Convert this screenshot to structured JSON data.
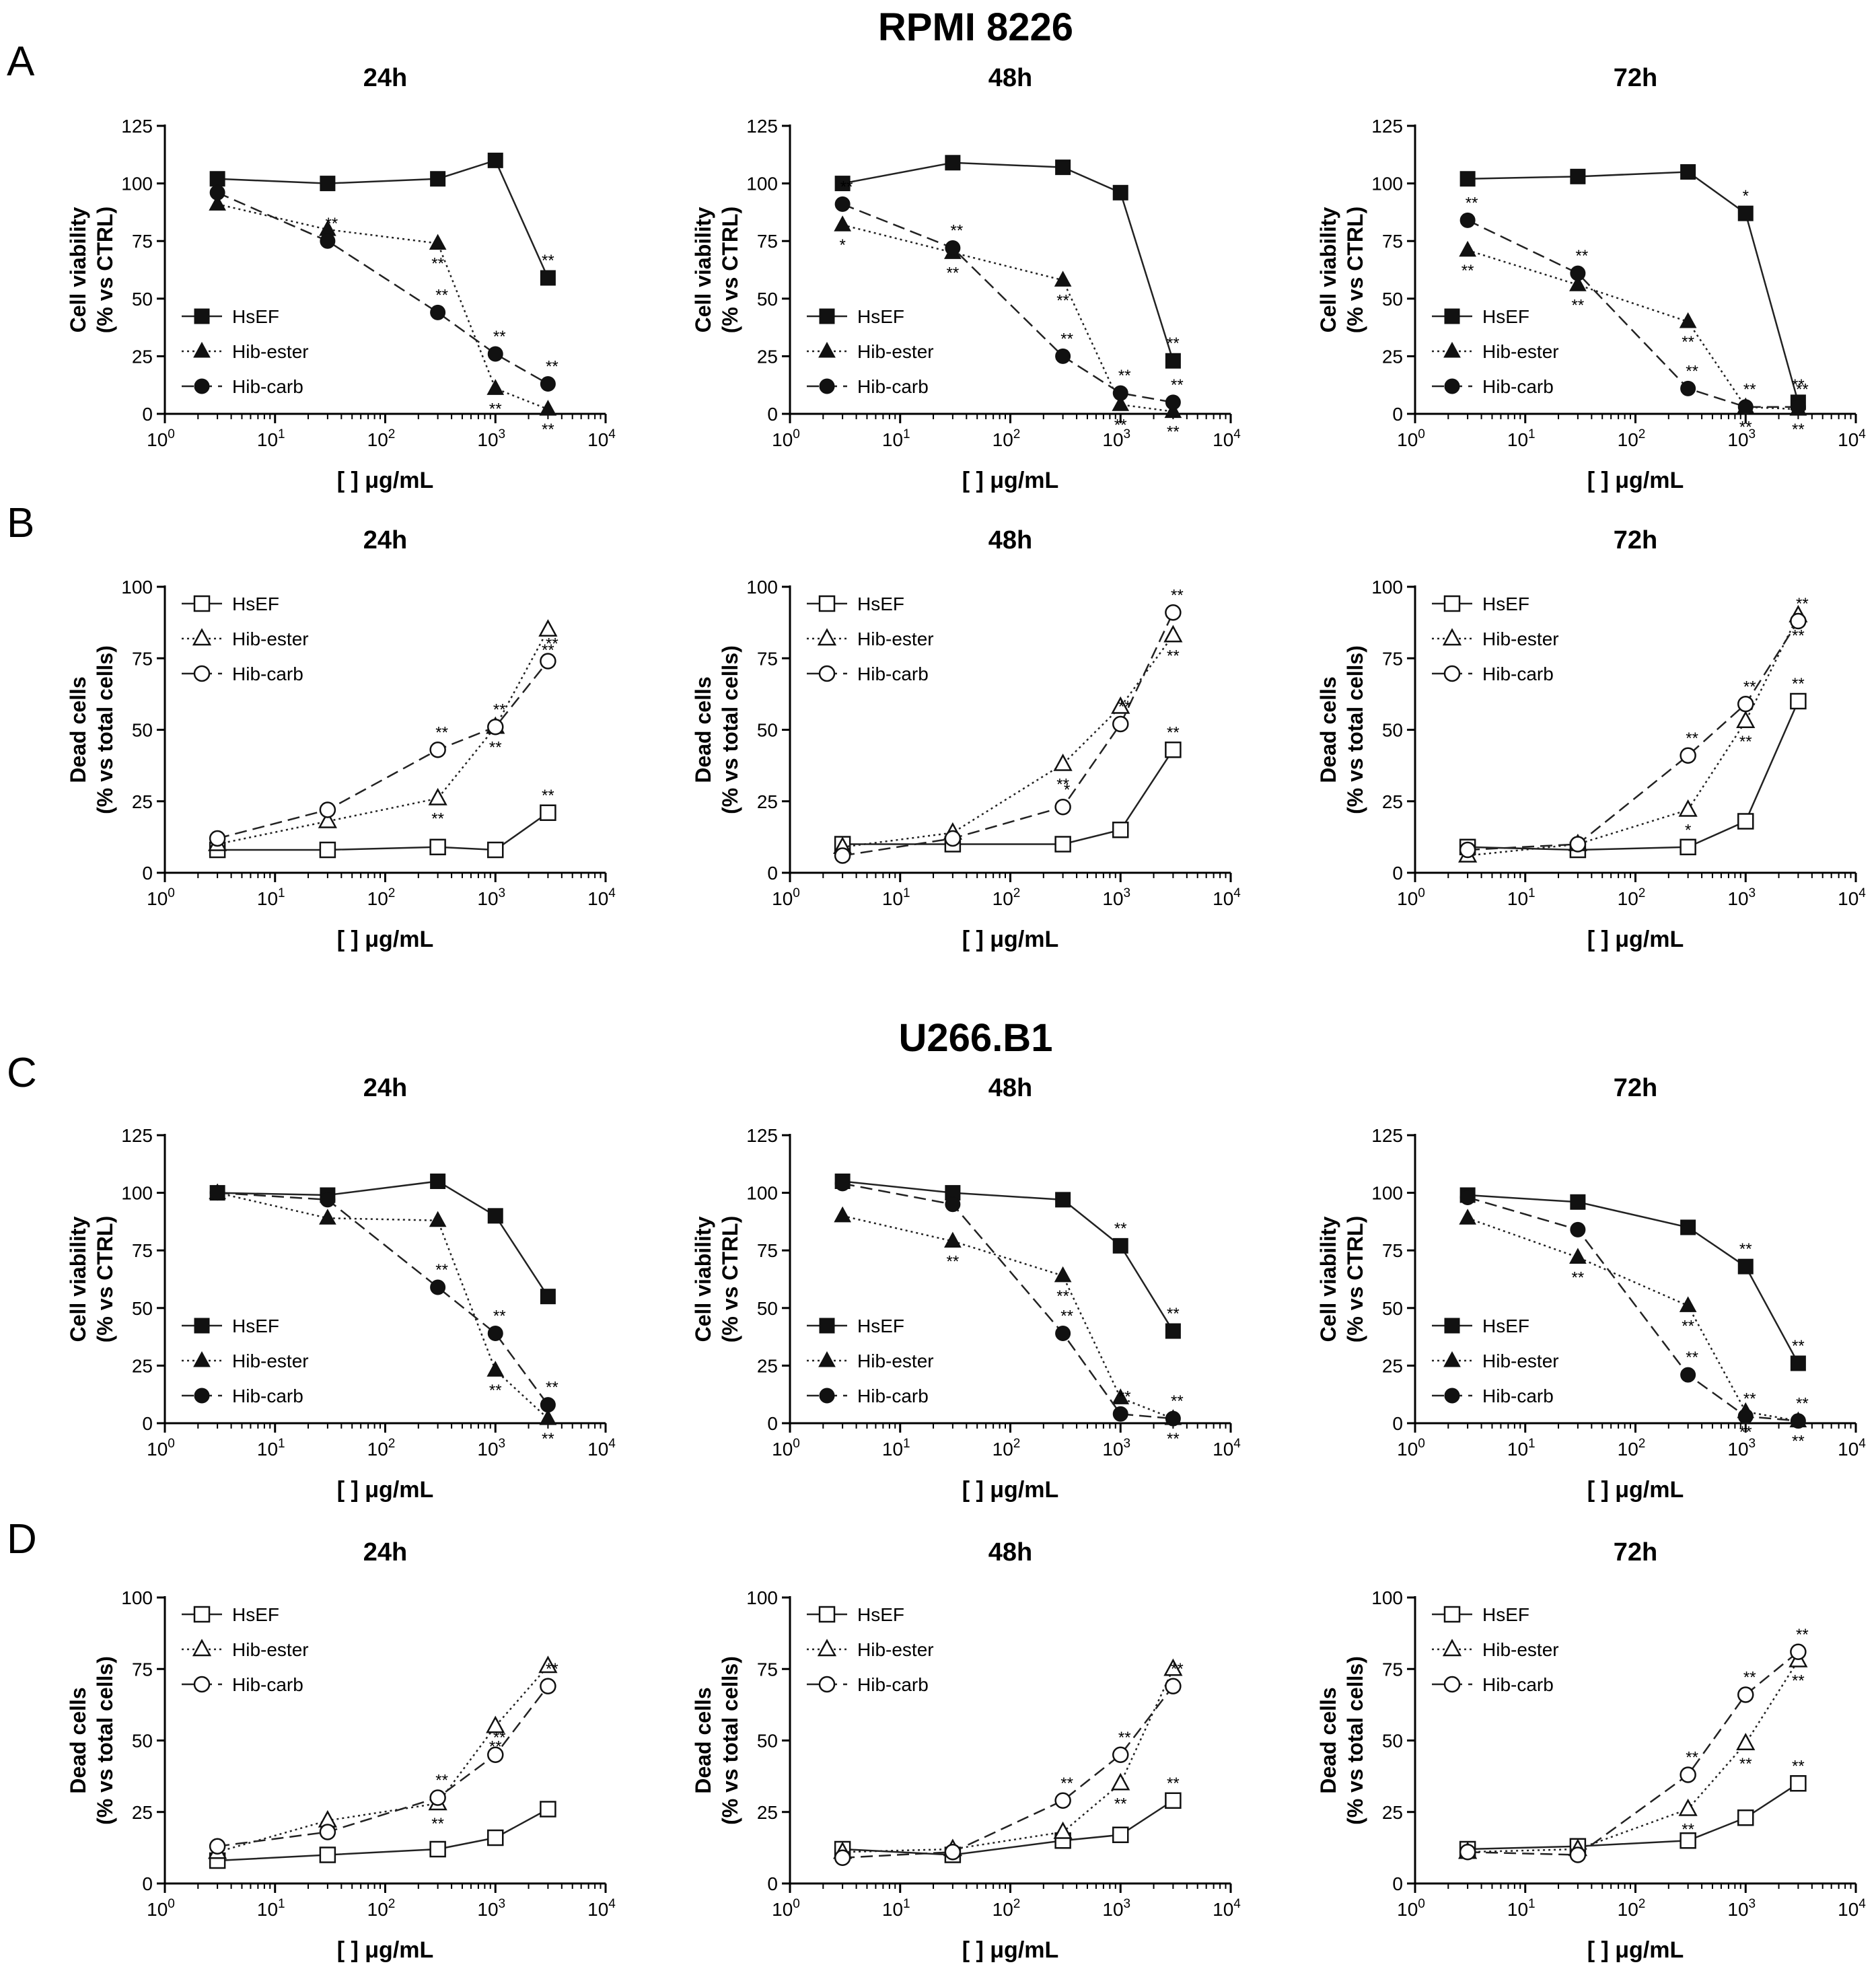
{
  "figure": {
    "group_titles": [
      "RPMI 8226",
      "U266.B1"
    ],
    "row_letters": [
      "A",
      "B",
      "C",
      "D"
    ]
  },
  "chart_data": [
    {
      "id": "A-24h",
      "row": "A",
      "time": "24h",
      "type": "line",
      "title": "24h",
      "xlabel": "[ ] μg/mL",
      "ylabel": [
        "Cell viability",
        "(% vs CTRL)"
      ],
      "ylim": [
        0,
        125
      ],
      "yticks": [
        0,
        25,
        50,
        75,
        100,
        125
      ],
      "xscale": "log",
      "xlim": [
        1,
        10000
      ],
      "markers_filled": true,
      "x": [
        3,
        30,
        300,
        1000,
        3000
      ],
      "series": [
        {
          "name": "HsEF",
          "values": [
            102,
            100,
            102,
            110,
            59
          ],
          "sig": [
            "",
            "",
            "",
            "",
            "**"
          ]
        },
        {
          "name": "Hib-ester",
          "values": [
            91,
            80,
            74,
            11,
            2
          ],
          "sig": [
            "",
            "",
            "**",
            "**",
            "**"
          ]
        },
        {
          "name": "Hib-carb",
          "values": [
            96,
            75,
            44,
            26,
            13
          ],
          "sig": [
            "",
            "**",
            "**",
            "**",
            "**"
          ]
        }
      ]
    },
    {
      "id": "A-48h",
      "row": "A",
      "time": "48h",
      "type": "line",
      "title": "48h",
      "xlabel": "[ ] μg/mL",
      "ylabel": [
        "Cell viability",
        "(% vs CTRL)"
      ],
      "ylim": [
        0,
        125
      ],
      "yticks": [
        0,
        25,
        50,
        75,
        100,
        125
      ],
      "xscale": "log",
      "xlim": [
        1,
        10000
      ],
      "markers_filled": true,
      "x": [
        3,
        30,
        300,
        1000,
        3000
      ],
      "series": [
        {
          "name": "HsEF",
          "values": [
            100,
            109,
            107,
            96,
            23
          ],
          "sig": [
            "",
            "",
            "",
            "",
            "**"
          ]
        },
        {
          "name": "Hib-ester",
          "values": [
            82,
            70,
            58,
            4,
            1
          ],
          "sig": [
            "*",
            "**",
            "**",
            "**",
            "**"
          ]
        },
        {
          "name": "Hib-carb",
          "values": [
            91,
            72,
            25,
            9,
            5
          ],
          "sig": [
            "**",
            "**",
            "**",
            "**",
            "**"
          ]
        }
      ]
    },
    {
      "id": "A-72h",
      "row": "A",
      "time": "72h",
      "type": "line",
      "title": "72h",
      "xlabel": "[ ] μg/mL",
      "ylabel": [
        "Cell viability",
        "(% vs CTRL)"
      ],
      "ylim": [
        0,
        125
      ],
      "yticks": [
        0,
        25,
        50,
        75,
        100,
        125
      ],
      "xscale": "log",
      "xlim": [
        1,
        10000
      ],
      "markers_filled": true,
      "x": [
        3,
        30,
        300,
        1000,
        3000
      ],
      "series": [
        {
          "name": "HsEF",
          "values": [
            102,
            103,
            105,
            87,
            5
          ],
          "sig": [
            "",
            "",
            "",
            "*",
            "**"
          ]
        },
        {
          "name": "Hib-ester",
          "values": [
            71,
            56,
            40,
            3,
            2
          ],
          "sig": [
            "**",
            "**",
            "**",
            "**",
            "**"
          ]
        },
        {
          "name": "Hib-carb",
          "values": [
            84,
            61,
            11,
            3,
            3
          ],
          "sig": [
            "**",
            "**",
            "**",
            "**",
            "**"
          ]
        }
      ]
    },
    {
      "id": "B-24h",
      "row": "B",
      "time": "24h",
      "type": "line",
      "title": "24h",
      "xlabel": "[ ] μg/mL",
      "ylabel": [
        "Dead cells",
        "(% vs total cells)"
      ],
      "ylim": [
        0,
        100
      ],
      "yticks": [
        0,
        25,
        50,
        75,
        100
      ],
      "xscale": "log",
      "xlim": [
        1,
        10000
      ],
      "markers_filled": false,
      "x": [
        3,
        30,
        300,
        1000,
        3000
      ],
      "series": [
        {
          "name": "HsEF",
          "values": [
            8,
            8,
            9,
            8,
            21
          ],
          "sig": [
            "",
            "",
            "",
            "",
            "**"
          ]
        },
        {
          "name": "Hib-ester",
          "values": [
            10,
            18,
            26,
            51,
            85
          ],
          "sig": [
            "",
            "",
            "**",
            "**",
            "**"
          ]
        },
        {
          "name": "Hib-carb",
          "values": [
            12,
            22,
            43,
            51,
            74
          ],
          "sig": [
            "",
            "",
            "**",
            "**",
            "**"
          ]
        }
      ]
    },
    {
      "id": "B-48h",
      "row": "B",
      "time": "48h",
      "type": "line",
      "title": "48h",
      "xlabel": "[ ] μg/mL",
      "ylabel": [
        "Dead cells",
        "(% vs total cells)"
      ],
      "ylim": [
        0,
        100
      ],
      "yticks": [
        0,
        25,
        50,
        75,
        100
      ],
      "xscale": "log",
      "xlim": [
        1,
        10000
      ],
      "markers_filled": false,
      "x": [
        3,
        30,
        300,
        1000,
        3000
      ],
      "series": [
        {
          "name": "HsEF",
          "values": [
            10,
            10,
            10,
            15,
            43
          ],
          "sig": [
            "",
            "",
            "",
            "",
            "**"
          ]
        },
        {
          "name": "Hib-ester",
          "values": [
            9,
            14,
            38,
            58,
            83
          ],
          "sig": [
            "",
            "",
            "**",
            "**",
            "**"
          ]
        },
        {
          "name": "Hib-carb",
          "values": [
            6,
            12,
            23,
            52,
            91
          ],
          "sig": [
            "",
            "",
            "*",
            "**",
            "**"
          ]
        }
      ]
    },
    {
      "id": "B-72h",
      "row": "B",
      "time": "72h",
      "type": "line",
      "title": "72h",
      "xlabel": "[ ] μg/mL",
      "ylabel": [
        "Dead cells",
        "(% vs total cells)"
      ],
      "ylim": [
        0,
        100
      ],
      "yticks": [
        0,
        25,
        50,
        75,
        100
      ],
      "xscale": "log",
      "xlim": [
        1,
        10000
      ],
      "markers_filled": false,
      "x": [
        3,
        30,
        300,
        1000,
        3000
      ],
      "series": [
        {
          "name": "HsEF",
          "values": [
            9,
            8,
            9,
            18,
            60
          ],
          "sig": [
            "",
            "",
            "",
            "",
            "**"
          ]
        },
        {
          "name": "Hib-ester",
          "values": [
            6,
            10,
            22,
            53,
            90
          ],
          "sig": [
            "",
            "",
            "*",
            "**",
            "**"
          ]
        },
        {
          "name": "Hib-carb",
          "values": [
            8,
            10,
            41,
            59,
            88
          ],
          "sig": [
            "",
            "",
            "**",
            "**",
            "**"
          ]
        }
      ]
    },
    {
      "id": "C-24h",
      "row": "C",
      "time": "24h",
      "type": "line",
      "title": "24h",
      "xlabel": "[ ] μg/mL",
      "ylabel": [
        "Cell viability",
        "(% vs CTRL)"
      ],
      "ylim": [
        0,
        125
      ],
      "yticks": [
        0,
        25,
        50,
        75,
        100,
        125
      ],
      "xscale": "log",
      "xlim": [
        1,
        10000
      ],
      "markers_filled": true,
      "x": [
        3,
        30,
        300,
        1000,
        3000
      ],
      "series": [
        {
          "name": "HsEF",
          "values": [
            100,
            99,
            105,
            90,
            55
          ],
          "sig": [
            "",
            "",
            "",
            "",
            ""
          ]
        },
        {
          "name": "Hib-ester",
          "values": [
            100,
            89,
            88,
            23,
            2
          ],
          "sig": [
            "",
            "",
            "",
            "**",
            "**"
          ]
        },
        {
          "name": "Hib-carb",
          "values": [
            100,
            97,
            59,
            39,
            8
          ],
          "sig": [
            "",
            "",
            "**",
            "**",
            "**"
          ]
        }
      ]
    },
    {
      "id": "C-48h",
      "row": "C",
      "time": "48h",
      "type": "line",
      "title": "48h",
      "xlabel": "[ ] μg/mL",
      "ylabel": [
        "Cell viability",
        "(% vs CTRL)"
      ],
      "ylim": [
        0,
        125
      ],
      "yticks": [
        0,
        25,
        50,
        75,
        100,
        125
      ],
      "xscale": "log",
      "xlim": [
        1,
        10000
      ],
      "markers_filled": true,
      "x": [
        3,
        30,
        300,
        1000,
        3000
      ],
      "series": [
        {
          "name": "HsEF",
          "values": [
            105,
            100,
            97,
            77,
            40
          ],
          "sig": [
            "",
            "",
            "",
            "**",
            "**"
          ]
        },
        {
          "name": "Hib-ester",
          "values": [
            90,
            79,
            64,
            11,
            2
          ],
          "sig": [
            "",
            "**",
            "**",
            "**",
            "**"
          ]
        },
        {
          "name": "Hib-carb",
          "values": [
            104,
            95,
            39,
            4,
            2
          ],
          "sig": [
            "",
            "",
            "**",
            "**",
            "**"
          ]
        }
      ]
    },
    {
      "id": "C-72h",
      "row": "C",
      "time": "72h",
      "type": "line",
      "title": "72h",
      "xlabel": "[ ] μg/mL",
      "ylabel": [
        "Cell viability",
        "(% vs CTRL)"
      ],
      "ylim": [
        0,
        125
      ],
      "yticks": [
        0,
        25,
        50,
        75,
        100,
        125
      ],
      "xscale": "log",
      "xlim": [
        1,
        10000
      ],
      "markers_filled": true,
      "x": [
        3,
        30,
        300,
        1000,
        3000
      ],
      "series": [
        {
          "name": "HsEF",
          "values": [
            99,
            96,
            85,
            68,
            26
          ],
          "sig": [
            "",
            "",
            "",
            "**",
            "**"
          ]
        },
        {
          "name": "Hib-ester",
          "values": [
            89,
            72,
            51,
            5,
            1
          ],
          "sig": [
            "",
            "**",
            "**",
            "**",
            "**"
          ]
        },
        {
          "name": "Hib-carb",
          "values": [
            98,
            84,
            21,
            3,
            1
          ],
          "sig": [
            "",
            "",
            "**",
            "**",
            "**"
          ]
        }
      ]
    },
    {
      "id": "D-24h",
      "row": "D",
      "time": "24h",
      "type": "line",
      "title": "24h",
      "xlabel": "[ ] μg/mL",
      "ylabel": [
        "Dead cells",
        "(% vs total cells)"
      ],
      "ylim": [
        0,
        100
      ],
      "yticks": [
        0,
        25,
        50,
        75,
        100
      ],
      "xscale": "log",
      "xlim": [
        1,
        10000
      ],
      "markers_filled": false,
      "x": [
        3,
        30,
        300,
        1000,
        3000
      ],
      "series": [
        {
          "name": "HsEF",
          "values": [
            8,
            10,
            12,
            16,
            26
          ],
          "sig": [
            "",
            "",
            "",
            "",
            ""
          ]
        },
        {
          "name": "Hib-ester",
          "values": [
            11,
            22,
            28,
            55,
            76
          ],
          "sig": [
            "",
            "",
            "**",
            "**",
            "**"
          ]
        },
        {
          "name": "Hib-carb",
          "values": [
            13,
            18,
            30,
            45,
            69
          ],
          "sig": [
            "",
            "",
            "**",
            "**",
            "**"
          ]
        }
      ]
    },
    {
      "id": "D-48h",
      "row": "D",
      "time": "48h",
      "type": "line",
      "title": "48h",
      "xlabel": "[ ] μg/mL",
      "ylabel": [
        "Dead cells",
        "(% vs total cells)"
      ],
      "ylim": [
        0,
        100
      ],
      "yticks": [
        0,
        25,
        50,
        75,
        100
      ],
      "xscale": "log",
      "xlim": [
        1,
        10000
      ],
      "markers_filled": false,
      "x": [
        3,
        30,
        300,
        1000,
        3000
      ],
      "series": [
        {
          "name": "HsEF",
          "values": [
            12,
            10,
            15,
            17,
            29
          ],
          "sig": [
            "",
            "",
            "",
            "",
            "**"
          ]
        },
        {
          "name": "Hib-ester",
          "values": [
            11,
            12,
            18,
            35,
            75
          ],
          "sig": [
            "",
            "",
            "",
            "**",
            "**"
          ]
        },
        {
          "name": "Hib-carb",
          "values": [
            9,
            11,
            29,
            45,
            69
          ],
          "sig": [
            "",
            "",
            "**",
            "**",
            "**"
          ]
        }
      ]
    },
    {
      "id": "D-72h",
      "row": "D",
      "time": "72h",
      "type": "line",
      "title": "72h",
      "xlabel": "[ ] μg/mL",
      "ylabel": [
        "Dead cells",
        "(% vs total cells)"
      ],
      "ylim": [
        0,
        100
      ],
      "yticks": [
        0,
        25,
        50,
        75,
        100
      ],
      "xscale": "log",
      "xlim": [
        1,
        10000
      ],
      "markers_filled": false,
      "x": [
        3,
        30,
        300,
        1000,
        3000
      ],
      "series": [
        {
          "name": "HsEF",
          "values": [
            12,
            13,
            15,
            23,
            35
          ],
          "sig": [
            "",
            "",
            "",
            "",
            "**"
          ]
        },
        {
          "name": "Hib-ester",
          "values": [
            11,
            12,
            26,
            49,
            78
          ],
          "sig": [
            "",
            "",
            "**",
            "**",
            "**"
          ]
        },
        {
          "name": "Hib-carb",
          "values": [
            11,
            10,
            38,
            66,
            81
          ],
          "sig": [
            "",
            "",
            "**",
            "**",
            "**"
          ]
        }
      ]
    }
  ]
}
